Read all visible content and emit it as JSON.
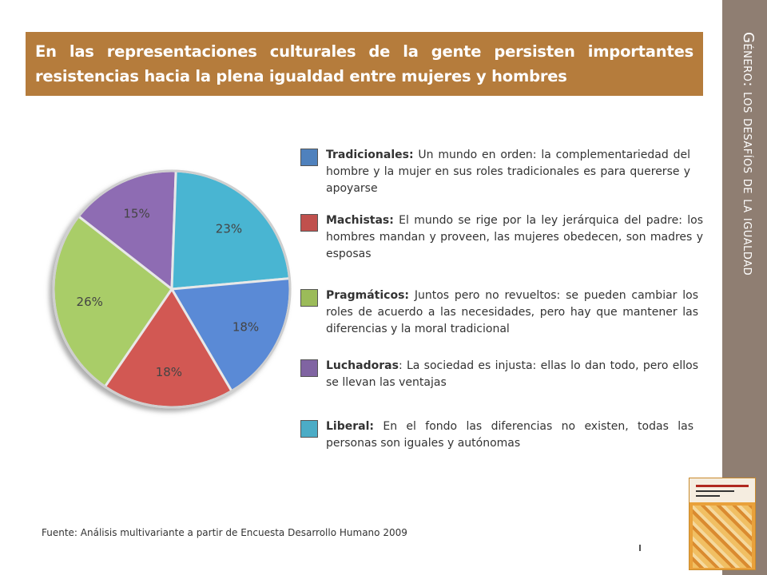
{
  "title": "En las representaciones culturales de la gente persisten importantes resistencias hacia la plena igualdad entre mujeres y hombres",
  "side_title": "Género: los desafíos de la igualdad",
  "source": "Fuente: Análisis multivariante a partir de Encuesta Desarrollo Humano 2009",
  "colors": {
    "title_bg": "#b57c3c",
    "side_band": "#8f7e72"
  },
  "chart_data": {
    "type": "pie",
    "slices": [
      {
        "label": "15%",
        "value": 15,
        "color": "#8e6cb3"
      },
      {
        "label": "23%",
        "value": 23,
        "color": "#48b5d2"
      },
      {
        "label": "18%",
        "value": 18,
        "color": "#5a8ad6"
      },
      {
        "label": "18%",
        "value": 18,
        "color": "#d25852"
      },
      {
        "label": "26%",
        "value": 26,
        "color": "#a9cd67"
      }
    ]
  },
  "legend": [
    {
      "name": "Tradicionales:",
      "desc": " Un mundo en orden: la complementariedad del hombre y la mujer en sus roles tradicionales es para quererse y apoyarse",
      "color": "#4f81bd"
    },
    {
      "name": "Machistas:",
      "desc": " El mundo se rige por la ley jerárquica del padre: los hombres mandan y proveen, las mujeres obedecen, son madres y esposas",
      "color": "#c0504d"
    },
    {
      "name": "Pragmáticos:",
      "desc": " Juntos pero no revueltos: se pueden cambiar los roles de acuerdo a las necesidades, pero hay que mantener las diferencias y la moral tradicional",
      "color": "#9bbb59"
    },
    {
      "name": "Luchadoras",
      "desc": ": La sociedad es injusta: ellas lo dan todo, pero ellos se llevan las ventajas",
      "color": "#8064a2"
    },
    {
      "name": "Liberal:",
      "desc": " En el fondo las diferencias no existen, todas las personas son iguales y autónomas",
      "color": "#4bacc6"
    }
  ]
}
